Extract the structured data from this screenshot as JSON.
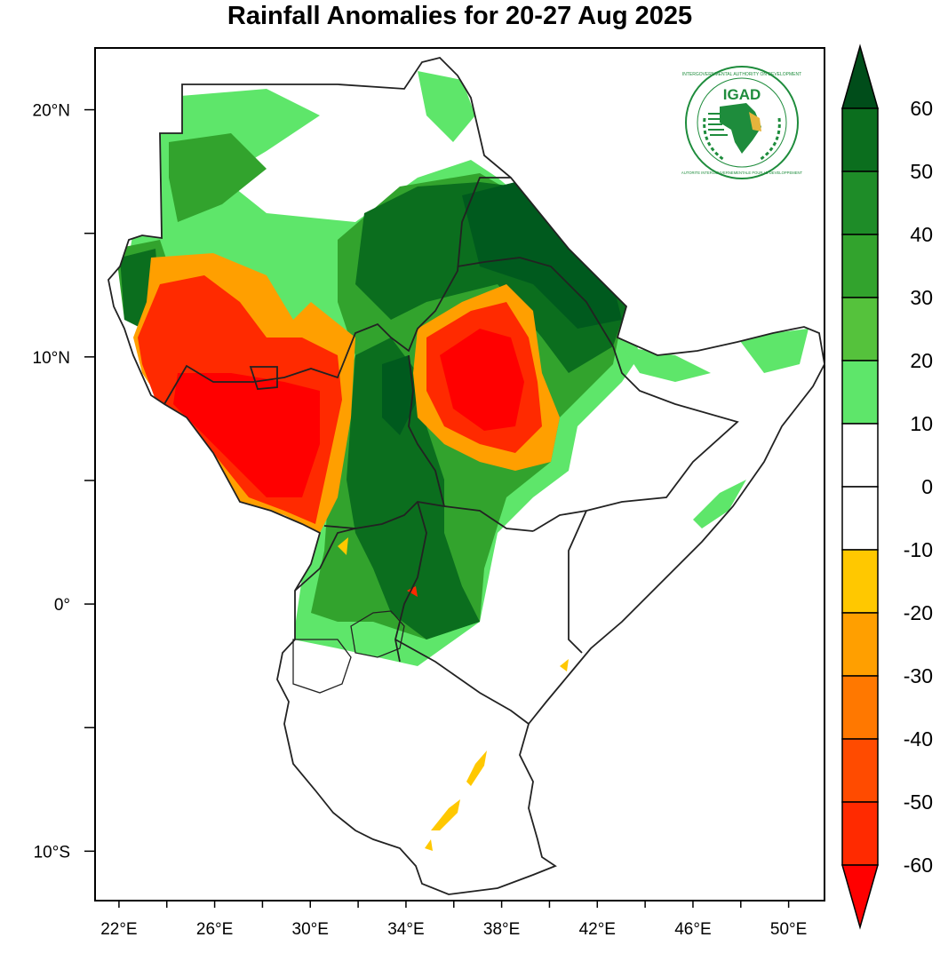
{
  "title": "Rainfall Anomalies for 20-27 Aug 2025",
  "map": {
    "lon_range": [
      21,
      51.5
    ],
    "lat_range": [
      -12,
      22.5
    ],
    "lon_ticks": [
      {
        "value": 22,
        "label": "22°E"
      },
      {
        "value": 26,
        "label": "26°E"
      },
      {
        "value": 30,
        "label": "30°E"
      },
      {
        "value": 34,
        "label": "34°E"
      },
      {
        "value": 38,
        "label": "38°E"
      },
      {
        "value": 42,
        "label": "42°E"
      },
      {
        "value": 46,
        "label": "46°E"
      },
      {
        "value": 50,
        "label": "50°E"
      }
    ],
    "lat_ticks": [
      {
        "value": 20,
        "label": "20°N"
      },
      {
        "value": 10,
        "label": "10°N"
      },
      {
        "value": 0,
        "label": "0°"
      },
      {
        "value": -10,
        "label": "10°S"
      }
    ]
  },
  "colorbar": {
    "labels": [
      "60",
      "50",
      "40",
      "30",
      "20",
      "10",
      "0",
      "-10",
      "-20",
      "-30",
      "-40",
      "-50",
      "-60"
    ],
    "colors": [
      "#005a1e",
      "#0b6e1e",
      "#1e8c28",
      "#32a32d",
      "#55c23c",
      "#5ee66a",
      "#ffffff",
      "#ffffff",
      "#ffc800",
      "#ff9f00",
      "#ff7800",
      "#ff4b00",
      "#ff2a00",
      "#ff0000"
    ],
    "top_color": "#004d1a",
    "bottom_color": "#ff0000"
  },
  "logo": {
    "text": "IGAD",
    "ring_top": "INTERGOVERNMENTAL AUTHORITY ON DEVELOPMENT",
    "ring_bottom": "AUTORITE INTERGOUVERNEMENTALE POUR LE DEVELOPPEMENT",
    "green": "#1e8c3c",
    "gold": "#e6b43c"
  }
}
